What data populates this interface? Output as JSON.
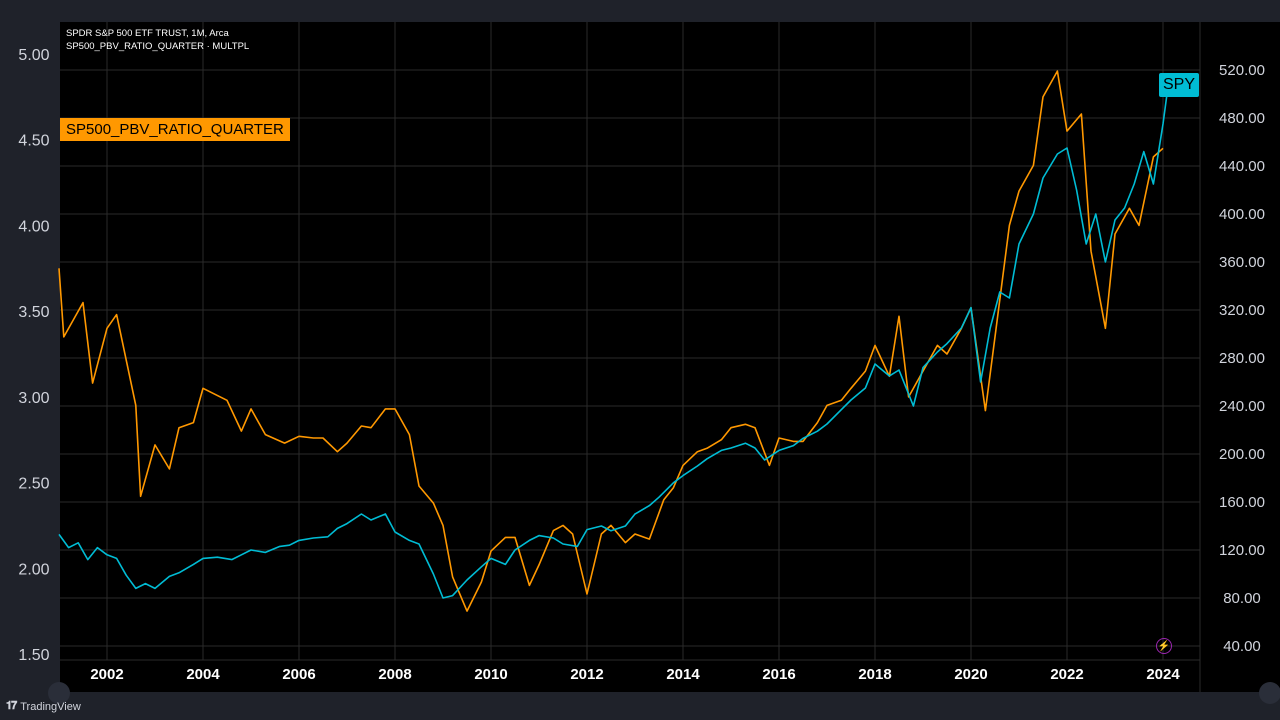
{
  "legend": {
    "line1": "SPDR S&P 500 ETF TRUST, 1M, Arca",
    "line2": "SP500_PBV_RATIO_QUARTER · MULTPL"
  },
  "tags": {
    "pbv": "SP500_PBV_RATIO_QUARTER",
    "spy": "SPY"
  },
  "footer": {
    "brand": "TradingView"
  },
  "colors": {
    "background": "#000000",
    "frame": "#1f222a",
    "grid": "#2a2a2a",
    "spy": "#00bcd4",
    "pbv": "#ff9800",
    "axis_text": "#d1d4dc"
  },
  "chart_data": {
    "type": "line",
    "x_ticks": [
      "2002",
      "2004",
      "2006",
      "2008",
      "2010",
      "2012",
      "2014",
      "2016",
      "2018",
      "2020",
      "2022",
      "2024"
    ],
    "xlim": [
      2001.0,
      2025.0
    ],
    "left_axis": {
      "ticks": [
        "5.00",
        "4.50",
        "4.00",
        "3.50",
        "3.00",
        "2.50",
        "2.00",
        "1.50"
      ],
      "ylim": [
        1.5,
        5.0
      ]
    },
    "right_axis": {
      "ticks": [
        "520.00",
        "480.00",
        "440.00",
        "400.00",
        "360.00",
        "320.00",
        "280.00",
        "240.00",
        "200.00",
        "160.00",
        "120.00",
        "80.00",
        "40.00"
      ],
      "ylim": [
        40,
        520
      ]
    },
    "series": [
      {
        "name": "SP500_PBV_RATIO_QUARTER",
        "axis": "left",
        "x": [
          2001.0,
          2001.1,
          2001.5,
          2001.7,
          2002.0,
          2002.2,
          2002.6,
          2002.7,
          2003.0,
          2003.3,
          2003.5,
          2003.8,
          2004.0,
          2004.5,
          2004.8,
          2005.0,
          2005.3,
          2005.7,
          2006.0,
          2006.3,
          2006.5,
          2006.8,
          2007.0,
          2007.3,
          2007.5,
          2007.8,
          2008.0,
          2008.3,
          2008.5,
          2008.8,
          2009.0,
          2009.2,
          2009.5,
          2009.8,
          2010.0,
          2010.3,
          2010.5,
          2010.8,
          2011.0,
          2011.3,
          2011.5,
          2011.7,
          2012.0,
          2012.3,
          2012.5,
          2012.8,
          2013.0,
          2013.3,
          2013.6,
          2013.8,
          2014.0,
          2014.3,
          2014.5,
          2014.8,
          2015.0,
          2015.3,
          2015.5,
          2015.8,
          2016.0,
          2016.3,
          2016.5,
          2016.8,
          2017.0,
          2017.3,
          2017.5,
          2017.8,
          2018.0,
          2018.3,
          2018.5,
          2018.7,
          2019.0,
          2019.3,
          2019.5,
          2019.8,
          2020.0,
          2020.3,
          2020.5,
          2020.8,
          2021.0,
          2021.3,
          2021.5,
          2021.8,
          2022.0,
          2022.3,
          2022.5,
          2022.8,
          2023.0,
          2023.3,
          2023.5,
          2023.8,
          2024.0
        ],
        "values": [
          3.75,
          3.35,
          3.55,
          3.08,
          3.4,
          3.48,
          2.95,
          2.42,
          2.72,
          2.58,
          2.82,
          2.85,
          3.05,
          2.98,
          2.8,
          2.93,
          2.78,
          2.73,
          2.77,
          2.76,
          2.76,
          2.68,
          2.73,
          2.83,
          2.82,
          2.93,
          2.93,
          2.78,
          2.48,
          2.38,
          2.25,
          1.95,
          1.75,
          1.92,
          2.1,
          2.18,
          2.18,
          1.9,
          2.02,
          2.22,
          2.25,
          2.2,
          1.85,
          2.2,
          2.25,
          2.15,
          2.2,
          2.17,
          2.4,
          2.47,
          2.6,
          2.68,
          2.7,
          2.75,
          2.82,
          2.84,
          2.82,
          2.6,
          2.76,
          2.74,
          2.74,
          2.85,
          2.95,
          2.98,
          3.05,
          3.15,
          3.3,
          3.12,
          3.47,
          3.0,
          3.15,
          3.3,
          3.25,
          3.4,
          3.52,
          2.92,
          3.35,
          4.0,
          4.2,
          4.35,
          4.75,
          4.9,
          4.55,
          4.65,
          3.85,
          3.4,
          3.95,
          4.1,
          4.0,
          4.4,
          4.45
        ]
      },
      {
        "name": "SPY",
        "axis": "right",
        "x": [
          2001.0,
          2001.2,
          2001.4,
          2001.6,
          2001.8,
          2002.0,
          2002.2,
          2002.4,
          2002.6,
          2002.8,
          2003.0,
          2003.3,
          2003.5,
          2003.8,
          2004.0,
          2004.3,
          2004.6,
          2004.8,
          2005.0,
          2005.3,
          2005.6,
          2005.8,
          2006.0,
          2006.3,
          2006.6,
          2006.8,
          2007.0,
          2007.3,
          2007.5,
          2007.8,
          2008.0,
          2008.3,
          2008.5,
          2008.8,
          2009.0,
          2009.2,
          2009.5,
          2009.8,
          2010.0,
          2010.3,
          2010.5,
          2010.8,
          2011.0,
          2011.3,
          2011.5,
          2011.8,
          2012.0,
          2012.3,
          2012.5,
          2012.8,
          2013.0,
          2013.3,
          2013.5,
          2013.8,
          2014.0,
          2014.3,
          2014.5,
          2014.8,
          2015.0,
          2015.3,
          2015.5,
          2015.7,
          2016.0,
          2016.3,
          2016.5,
          2016.8,
          2017.0,
          2017.3,
          2017.5,
          2017.8,
          2018.0,
          2018.3,
          2018.5,
          2018.8,
          2019.0,
          2019.3,
          2019.5,
          2019.8,
          2020.0,
          2020.2,
          2020.4,
          2020.6,
          2020.8,
          2021.0,
          2021.3,
          2021.5,
          2021.8,
          2022.0,
          2022.2,
          2022.4,
          2022.6,
          2022.8,
          2023.0,
          2023.2,
          2023.4,
          2023.6,
          2023.8,
          2024.0,
          2024.1
        ],
        "values": [
          133,
          122,
          126,
          112,
          122,
          116,
          113,
          99,
          88,
          92,
          88,
          98,
          101,
          108,
          113,
          114,
          112,
          116,
          120,
          118,
          123,
          124,
          128,
          130,
          131,
          138,
          142,
          150,
          145,
          150,
          135,
          128,
          125,
          100,
          80,
          82,
          95,
          106,
          113,
          108,
          120,
          128,
          132,
          130,
          125,
          123,
          137,
          140,
          136,
          140,
          150,
          157,
          164,
          176,
          182,
          190,
          196,
          203,
          205,
          209,
          205,
          195,
          203,
          207,
          213,
          219,
          225,
          237,
          245,
          255,
          275,
          265,
          270,
          240,
          272,
          285,
          292,
          305,
          322,
          260,
          305,
          335,
          330,
          375,
          400,
          430,
          450,
          455,
          420,
          375,
          400,
          360,
          395,
          405,
          425,
          452,
          425,
          475,
          505
        ]
      }
    ]
  }
}
